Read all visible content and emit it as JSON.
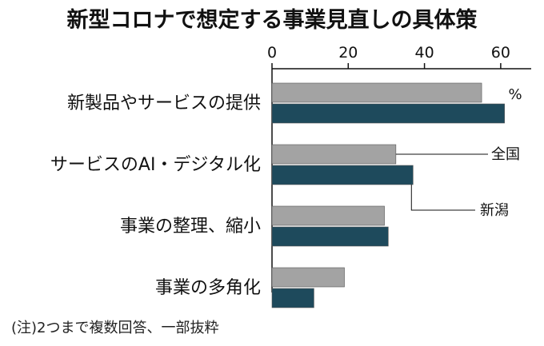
{
  "chart_data": {
    "type": "bar",
    "orientation": "horizontal",
    "title": "新型コロナで想定する事業見直しの具体策",
    "unit": "%",
    "categories": [
      "新製品やサービスの提供",
      "サービスのAI・デジタル化",
      "事業の整理、縮小",
      "事業の多角化"
    ],
    "series": [
      {
        "name": "全国",
        "values": [
          55,
          32.5,
          29.5,
          19
        ],
        "color": "#a3a3a3"
      },
      {
        "name": "新潟",
        "values": [
          61,
          37,
          30.5,
          11
        ],
        "color": "#1e4a5c"
      }
    ],
    "xlim": [
      0,
      68
    ],
    "xticks": [
      0,
      20,
      40,
      60
    ],
    "xtick_labels": [
      "0",
      "20",
      "40",
      "60"
    ],
    "axis_position": "top",
    "grid": false,
    "legend": "callout-right",
    "note": "(注)2つまで複数回答、一部抜粋"
  }
}
